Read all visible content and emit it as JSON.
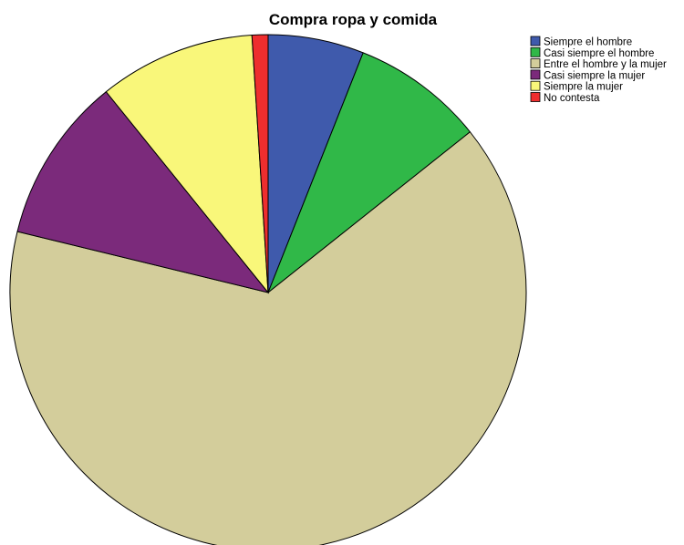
{
  "chart_data": {
    "type": "pie",
    "title": "Compra ropa y comida",
    "start_angle_deg": 0,
    "direction": "clockwise",
    "legend_position": "top-right",
    "slices": [
      {
        "label": "Siempre el hombre",
        "value": 6.0,
        "color": "#3f5aac"
      },
      {
        "label": "Casi siempre el hombre",
        "value": 8.3,
        "color": "#30b848"
      },
      {
        "label": "Entre el hombre y la mujer",
        "value": 64.5,
        "color": "#d3cd9b"
      },
      {
        "label": "Casi siempre la mujer",
        "value": 10.4,
        "color": "#7b2a7b"
      },
      {
        "label": "Siempre la mujer",
        "value": 9.8,
        "color": "#f9f77a"
      },
      {
        "label": "No contesta",
        "value": 1.0,
        "color": "#ee2e2e"
      }
    ]
  }
}
